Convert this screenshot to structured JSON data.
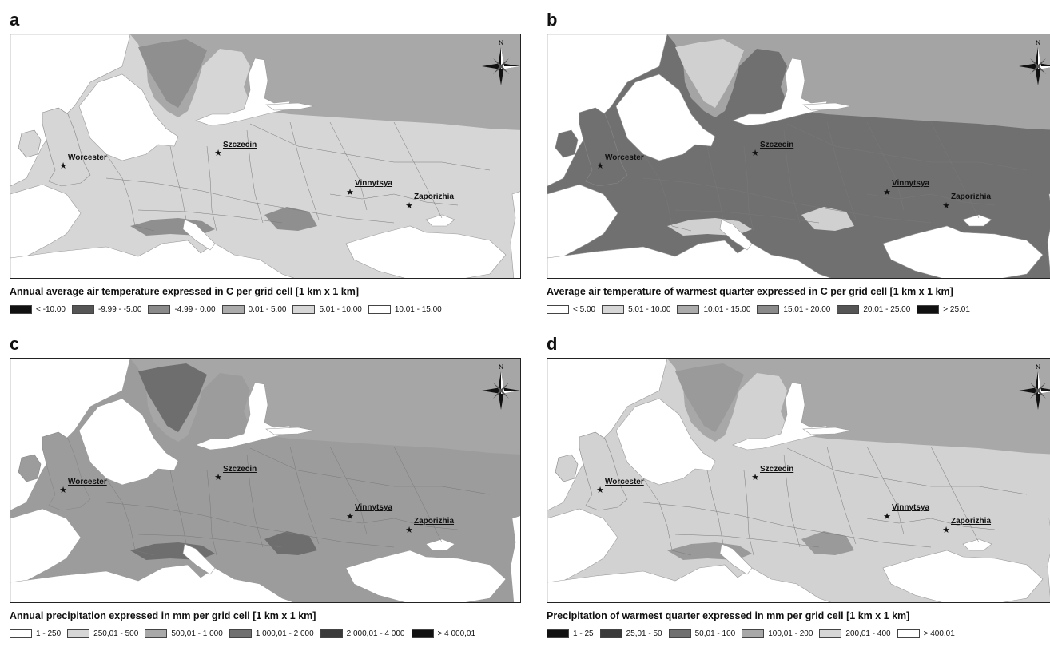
{
  "panels": [
    {
      "letter": "a",
      "caption": "Annual average air temperature expressed in C per grid cell [1 km x 1 km]",
      "colors": {
        "land": "#d6d6d6",
        "north": "#a8a8a8",
        "highland": "#8f8f8f",
        "sea": "#ffffff"
      },
      "legend": [
        {
          "label": "< -10.00",
          "color": "#111111"
        },
        {
          "label": "-9.99 - -5.00",
          "color": "#555555"
        },
        {
          "label": "-4.99 - 0.00",
          "color": "#8a8a8a"
        },
        {
          "label": "0.01 - 5.00",
          "color": "#ababab"
        },
        {
          "label": "5.01 - 10.00",
          "color": "#d6d6d6"
        },
        {
          "label": "10.01 - 15.00",
          "color": "#ffffff"
        }
      ],
      "cities": [
        {
          "name": "Worcester"
        },
        {
          "name": "Szczecin"
        },
        {
          "name": "Vinnytsya"
        },
        {
          "name": "Zaporizhia"
        }
      ],
      "compass_label": "N"
    },
    {
      "letter": "b",
      "caption": "Average air temperature of warmest quarter expressed in C per grid cell [1 km x 1 km]",
      "colors": {
        "land": "#707070",
        "north": "#a4a4a4",
        "highland": "#d0d0d0",
        "sea": "#ffffff"
      },
      "legend": [
        {
          "label": "< 5.00",
          "color": "#ffffff"
        },
        {
          "label": "5.01 - 10.00",
          "color": "#d6d6d6"
        },
        {
          "label": "10.01 - 15.00",
          "color": "#ababab"
        },
        {
          "label": "15.01 - 20.00",
          "color": "#8a8a8a"
        },
        {
          "label": "20.01 - 25.00",
          "color": "#555555"
        },
        {
          "label": "> 25.01",
          "color": "#111111"
        }
      ],
      "cities": [
        {
          "name": "Worcester"
        },
        {
          "name": "Szczecin"
        },
        {
          "name": "Vinnytsya"
        },
        {
          "name": "Zaporizhia"
        }
      ],
      "compass_label": "N"
    },
    {
      "letter": "c",
      "caption": "Annual precipitation expressed in mm per grid cell [1 km x 1 km]",
      "colors": {
        "land": "#9c9c9c",
        "north": "#a6a6a6",
        "highland": "#6e6e6e",
        "sea": "#ffffff"
      },
      "legend": [
        {
          "label": "1 - 250",
          "color": "#ffffff"
        },
        {
          "label": "250,01 - 500",
          "color": "#d6d6d6"
        },
        {
          "label": "500,01 - 1 000",
          "color": "#a8a8a8"
        },
        {
          "label": "1 000,01 - 2 000",
          "color": "#707070"
        },
        {
          "label": "2 000,01 - 4 000",
          "color": "#3a3a3a"
        },
        {
          "label": "> 4 000,01",
          "color": "#111111"
        }
      ],
      "cities": [
        {
          "name": "Worcester"
        },
        {
          "name": "Szczecin"
        },
        {
          "name": "Vinnytsya"
        },
        {
          "name": "Zaporizhia"
        }
      ],
      "compass_label": "N"
    },
    {
      "letter": "d",
      "caption": "Precipitation of warmest quarter expressed in mm per grid cell [1 km x 1 km]",
      "colors": {
        "land": "#d2d2d2",
        "north": "#a8a8a8",
        "highland": "#9a9a9a",
        "sea": "#ffffff"
      },
      "legend": [
        {
          "label": "1 - 25",
          "color": "#111111"
        },
        {
          "label": "25,01 - 50",
          "color": "#3a3a3a"
        },
        {
          "label": "50,01 - 100",
          "color": "#707070"
        },
        {
          "label": "100,01 - 200",
          "color": "#a8a8a8"
        },
        {
          "label": "200,01 - 400",
          "color": "#d6d6d6"
        },
        {
          "label": "> 400,01",
          "color": "#ffffff"
        }
      ],
      "cities": [
        {
          "name": "Worcester"
        },
        {
          "name": "Szczecin"
        },
        {
          "name": "Vinnytsya"
        },
        {
          "name": "Zaporizhia"
        }
      ],
      "compass_label": "N"
    }
  ]
}
